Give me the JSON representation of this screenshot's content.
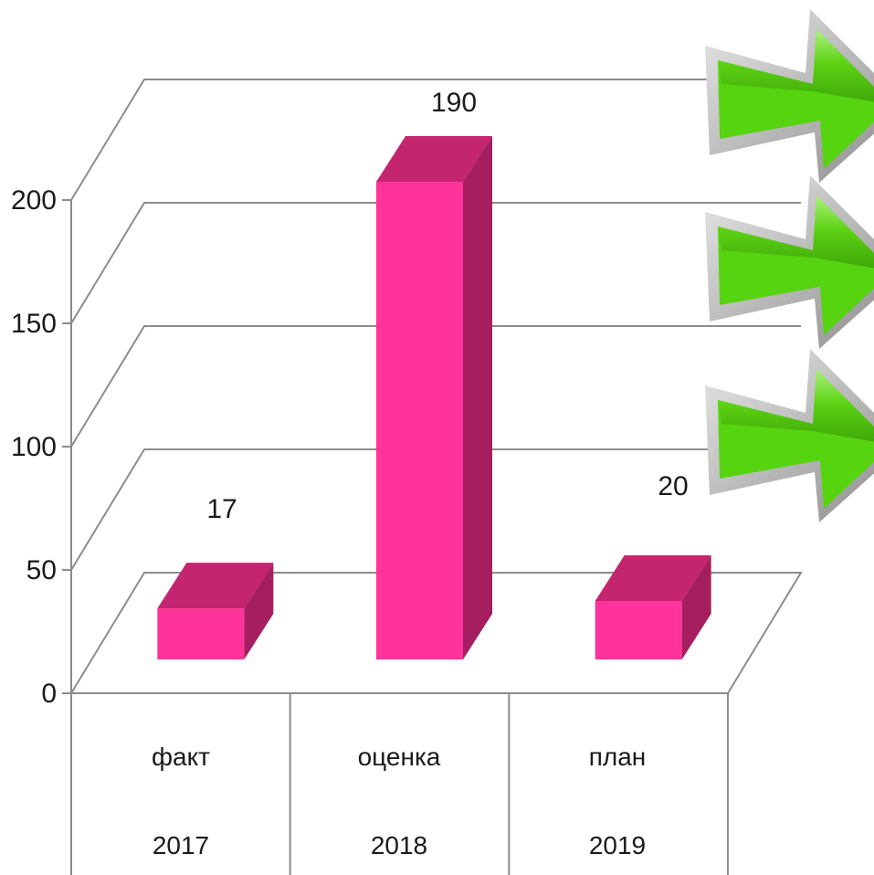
{
  "chart_data": {
    "type": "bar",
    "title": "",
    "xlabel": "",
    "ylabel": "",
    "categories": [
      {
        "label": "факт",
        "year": "2017"
      },
      {
        "label": "оценка",
        "year": "2018"
      },
      {
        "label": "план",
        "year": "2019"
      }
    ],
    "values": [
      17,
      190,
      20
    ],
    "data_labels": [
      "17",
      "190",
      "20"
    ],
    "yticks": [
      "0",
      "50",
      "100",
      "150",
      "200"
    ],
    "ylim": [
      0,
      200
    ],
    "grid": true,
    "legend": "none",
    "three_d": true,
    "colors": {
      "bar_front": "#ff3399",
      "bar_top": "#c4256f",
      "bar_side": "#a51e5f"
    }
  },
  "decorations": {
    "arrows": [
      {
        "icon": "green-arrow-right-icon",
        "color": "#55d40f"
      },
      {
        "icon": "green-arrow-right-icon",
        "color": "#55d40f"
      },
      {
        "icon": "green-arrow-right-icon",
        "color": "#55d40f"
      }
    ]
  }
}
